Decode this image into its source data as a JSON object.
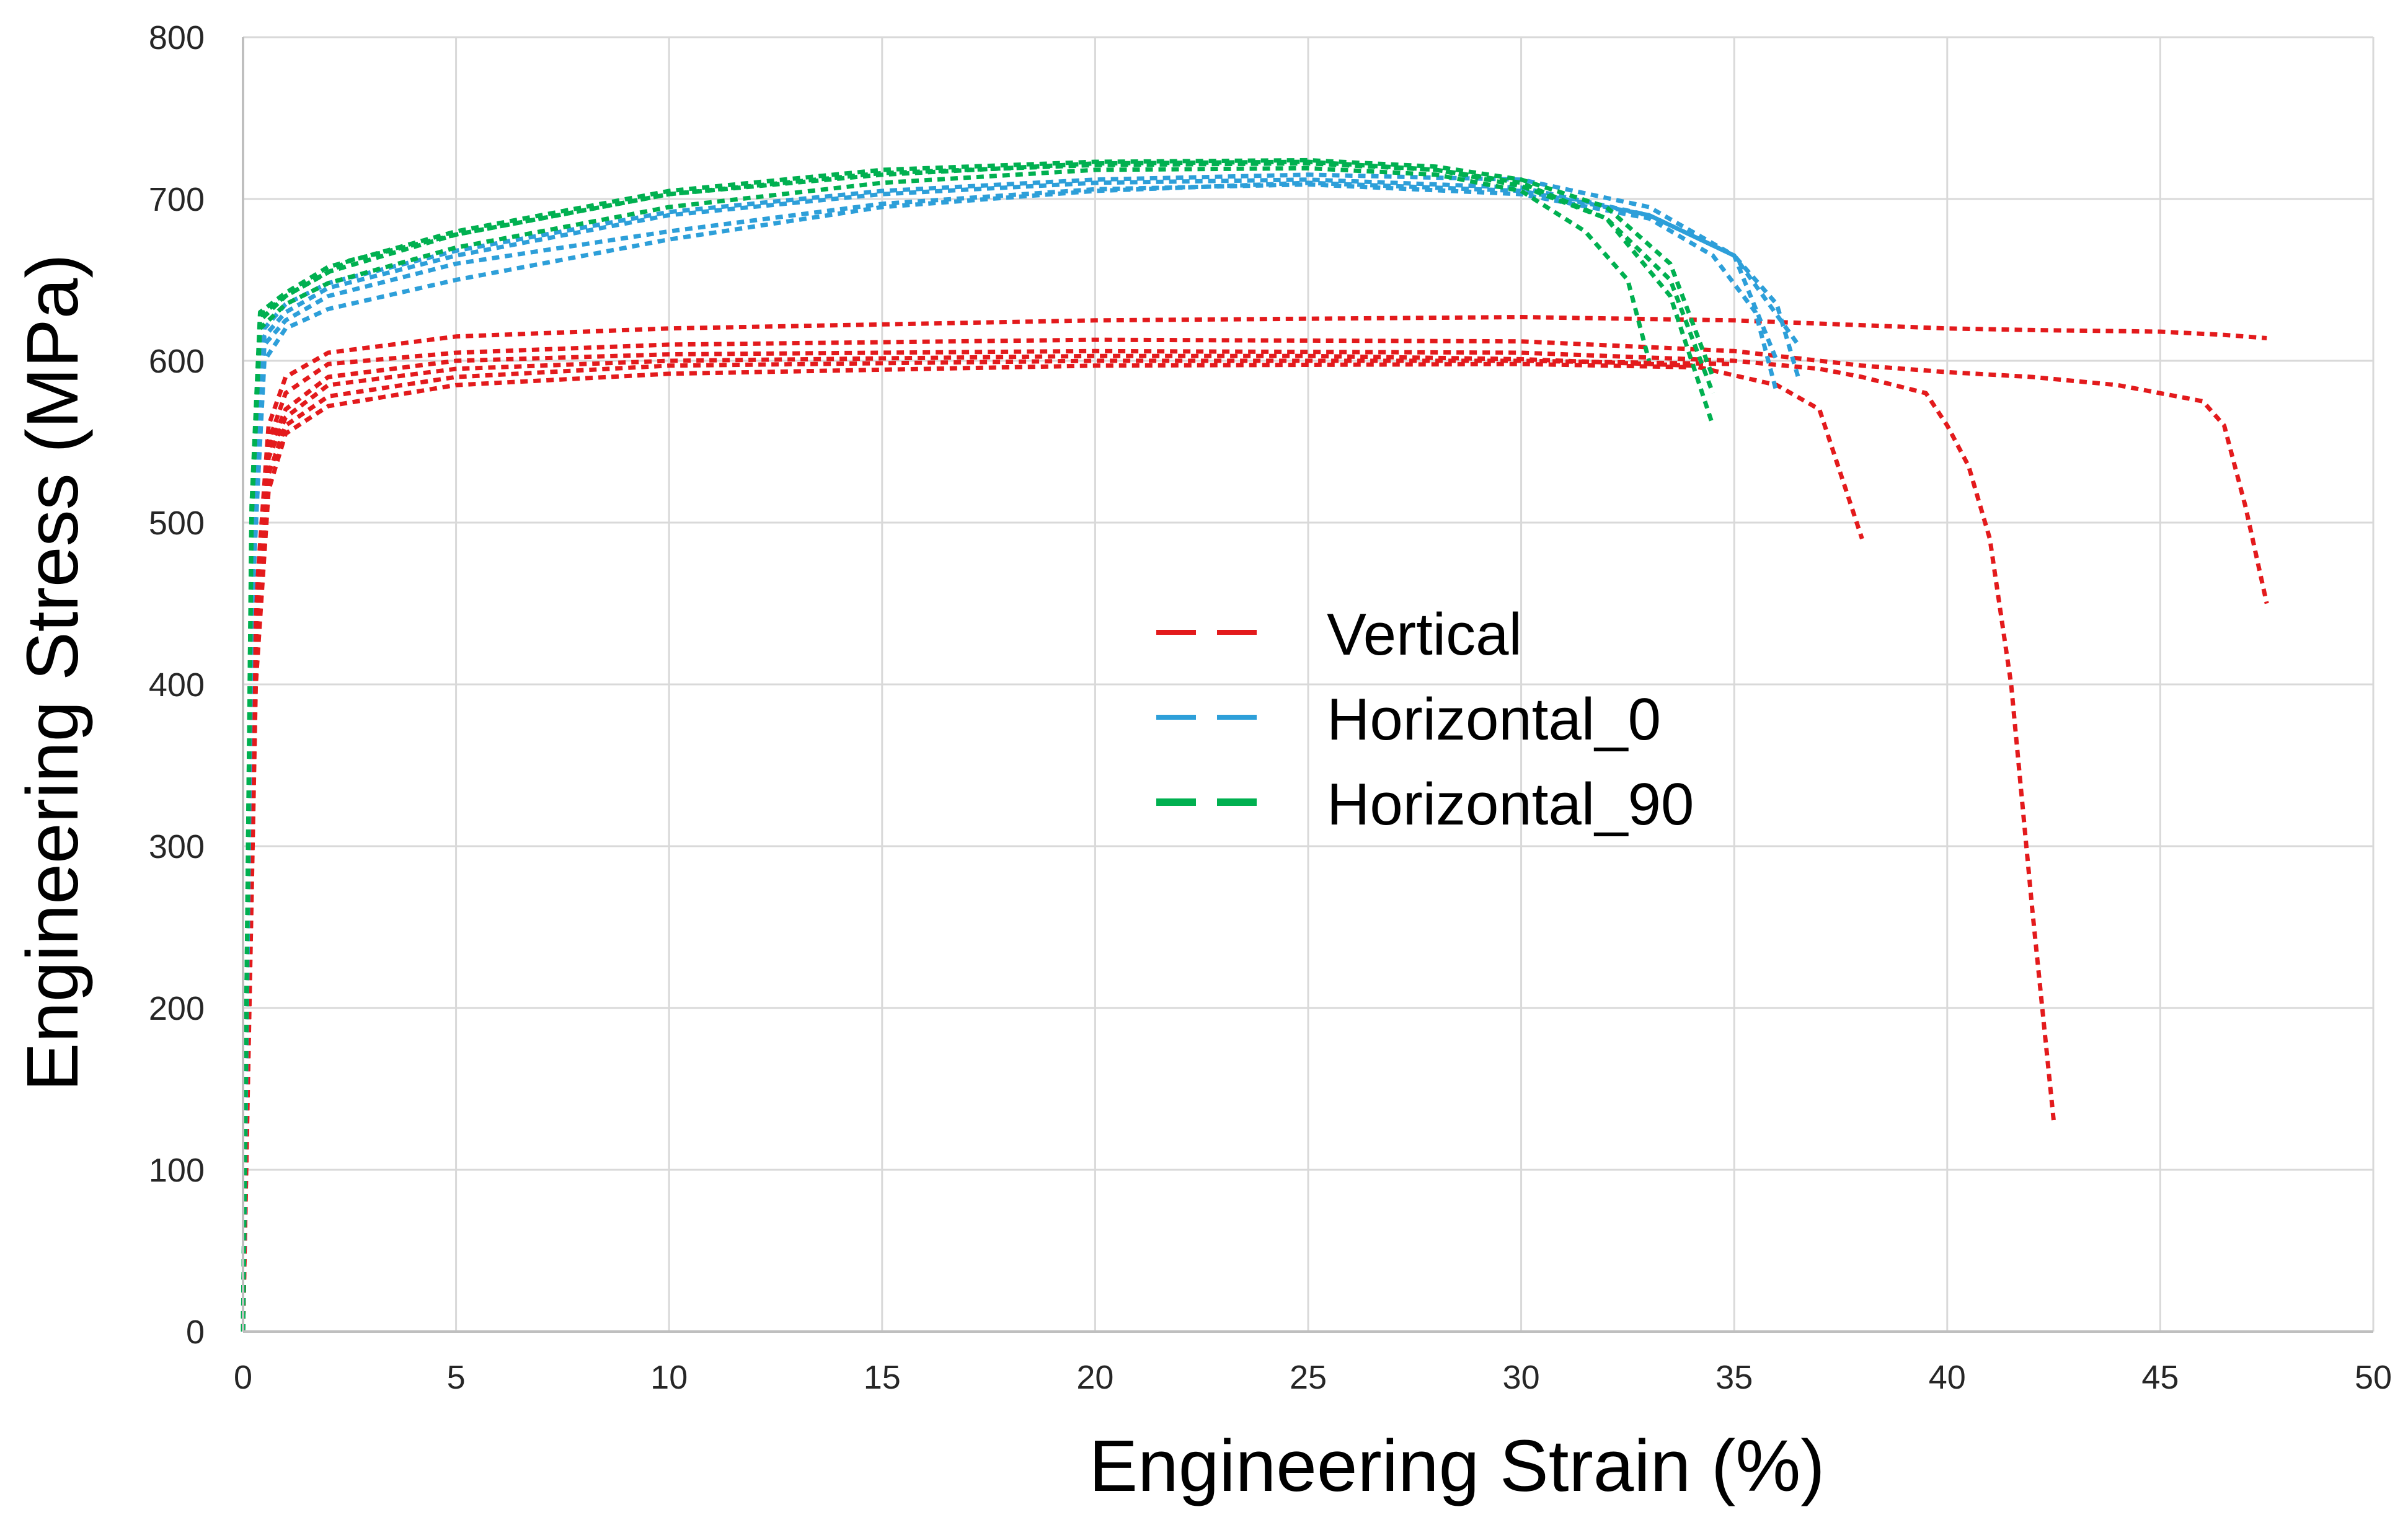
{
  "chart_data": {
    "type": "line",
    "title": "",
    "xlabel": "Engineering Strain (%)",
    "ylabel": "Engineering Stress (MPa)",
    "xlim": [
      0,
      50
    ],
    "ylim": [
      0,
      800
    ],
    "x_ticks": [
      0,
      5,
      10,
      15,
      20,
      25,
      30,
      35,
      40,
      45,
      50
    ],
    "y_ticks": [
      0,
      100,
      200,
      300,
      400,
      500,
      600,
      700,
      800
    ],
    "grid": true,
    "legend_position": "center",
    "legend": [
      {
        "label": "Vertical",
        "color": "#e31a1c",
        "dash": "long"
      },
      {
        "label": "Horizontal_0",
        "color": "#2d9fd9",
        "dash": "long"
      },
      {
        "label": "Horizontal_90",
        "color": "#00b050",
        "dash": "long"
      }
    ],
    "series": [
      {
        "name": "Vertical",
        "color": "#e31a1c",
        "x": [
          0,
          0.3,
          0.6,
          1,
          2,
          5,
          10,
          20,
          30,
          35,
          38,
          40,
          42,
          45,
          46.5,
          47.5
        ],
        "y": [
          0,
          450,
          560,
          590,
          605,
          615,
          620,
          625,
          627,
          625,
          622,
          620,
          619,
          618,
          616,
          614
        ]
      },
      {
        "name": "Vertical",
        "color": "#e31a1c",
        "x": [
          0,
          0.3,
          0.6,
          1,
          2,
          5,
          10,
          20,
          30,
          35,
          38,
          40,
          42,
          44,
          46,
          46.5,
          47,
          47.5
        ],
        "y": [
          0,
          440,
          550,
          580,
          598,
          605,
          610,
          613,
          612,
          606,
          597,
          593,
          590,
          585,
          575,
          560,
          510,
          450
        ]
      },
      {
        "name": "Vertical",
        "color": "#e31a1c",
        "x": [
          0,
          0.3,
          0.6,
          1,
          2,
          5,
          10,
          20,
          30,
          35,
          37,
          38,
          39.5,
          40,
          40.5,
          41,
          41.5,
          42,
          42.5
        ],
        "y": [
          0,
          430,
          545,
          570,
          590,
          600,
          604,
          606,
          605,
          600,
          595,
          590,
          580,
          560,
          535,
          490,
          400,
          260,
          130
        ]
      },
      {
        "name": "Vertical",
        "color": "#e31a1c",
        "x": [
          0,
          0.3,
          0.6,
          1,
          2,
          5,
          10,
          20,
          25,
          30,
          34,
          36,
          37,
          37.5,
          38
        ],
        "y": [
          0,
          420,
          540,
          565,
          585,
          595,
          600,
          603,
          603,
          601,
          597,
          585,
          570,
          530,
          490
        ]
      },
      {
        "name": "Vertical",
        "color": "#e31a1c",
        "x": [
          0,
          0.3,
          0.6,
          1,
          2,
          5,
          10,
          20,
          30,
          35
        ],
        "y": [
          0,
          410,
          530,
          560,
          578,
          590,
          597,
          600,
          600,
          598
        ]
      },
      {
        "name": "Vertical",
        "color": "#e31a1c",
        "x": [
          0,
          0.3,
          0.6,
          1,
          2,
          5,
          10,
          20,
          30,
          34
        ],
        "y": [
          0,
          400,
          520,
          555,
          572,
          585,
          592,
          597,
          598,
          596
        ]
      },
      {
        "name": "Horizontal_0",
        "color": "#2d9fd9",
        "x": [
          0,
          0.2,
          0.5,
          1,
          2,
          5,
          10,
          15,
          20,
          25,
          30,
          33,
          35,
          36,
          36.5
        ],
        "y": [
          0,
          450,
          600,
          620,
          632,
          650,
          675,
          695,
          705,
          710,
          705,
          690,
          665,
          635,
          590
        ]
      },
      {
        "name": "Horizontal_0",
        "color": "#2d9fd9",
        "x": [
          0,
          0.2,
          0.5,
          1,
          2,
          5,
          10,
          15,
          20,
          25,
          30,
          33,
          34.5,
          35.5,
          36
        ],
        "y": [
          0,
          440,
          610,
          625,
          640,
          660,
          680,
          697,
          706,
          709,
          703,
          688,
          665,
          630,
          580
        ]
      },
      {
        "name": "Horizontal_0",
        "color": "#2d9fd9",
        "x": [
          0,
          0.2,
          0.5,
          1,
          2,
          5,
          10,
          15,
          20,
          25,
          30,
          33,
          35,
          36.5
        ],
        "y": [
          0,
          460,
          615,
          630,
          645,
          665,
          690,
          703,
          710,
          712,
          707,
          690,
          665,
          610
        ]
      },
      {
        "name": "Horizontal_0",
        "color": "#2d9fd9",
        "x": [
          0,
          0.2,
          0.5,
          1,
          2,
          5,
          10,
          15,
          20,
          25,
          30,
          33,
          35,
          36
        ],
        "y": [
          0,
          455,
          620,
          635,
          648,
          668,
          692,
          705,
          712,
          715,
          712,
          695,
          665,
          600
        ]
      },
      {
        "name": "Horizontal_90",
        "color": "#00b050",
        "x": [
          0,
          0.2,
          0.4,
          1,
          2,
          5,
          10,
          15,
          20,
          25,
          28,
          30,
          31.5,
          32.5,
          33
        ],
        "y": [
          0,
          500,
          620,
          635,
          648,
          670,
          695,
          710,
          718,
          719,
          715,
          705,
          680,
          650,
          600
        ]
      },
      {
        "name": "Horizontal_90",
        "color": "#00b050",
        "x": [
          0,
          0.2,
          0.4,
          1,
          2,
          5,
          10,
          15,
          20,
          25,
          28,
          30,
          32,
          33.5,
          34.5
        ],
        "y": [
          0,
          500,
          625,
          640,
          655,
          678,
          703,
          715,
          722,
          723,
          718,
          710,
          688,
          640,
          560
        ]
      },
      {
        "name": "Horizontal_90",
        "color": "#00b050",
        "x": [
          0,
          0.2,
          0.4,
          1,
          2,
          5,
          10,
          15,
          20,
          25,
          28,
          30,
          32,
          33.5,
          34.5
        ],
        "y": [
          0,
          510,
          630,
          642,
          658,
          680,
          705,
          718,
          723,
          724,
          720,
          712,
          695,
          660,
          590
        ]
      },
      {
        "name": "Horizontal_90",
        "color": "#00b050",
        "x": [
          0,
          0.2,
          0.4,
          1,
          2.5,
          5,
          10,
          15,
          20,
          25,
          28,
          30,
          32,
          33.5,
          34.5
        ],
        "y": [
          0,
          505,
          628,
          640,
          662,
          678,
          703,
          716,
          721,
          722,
          718,
          708,
          688,
          650,
          580
        ]
      }
    ]
  }
}
